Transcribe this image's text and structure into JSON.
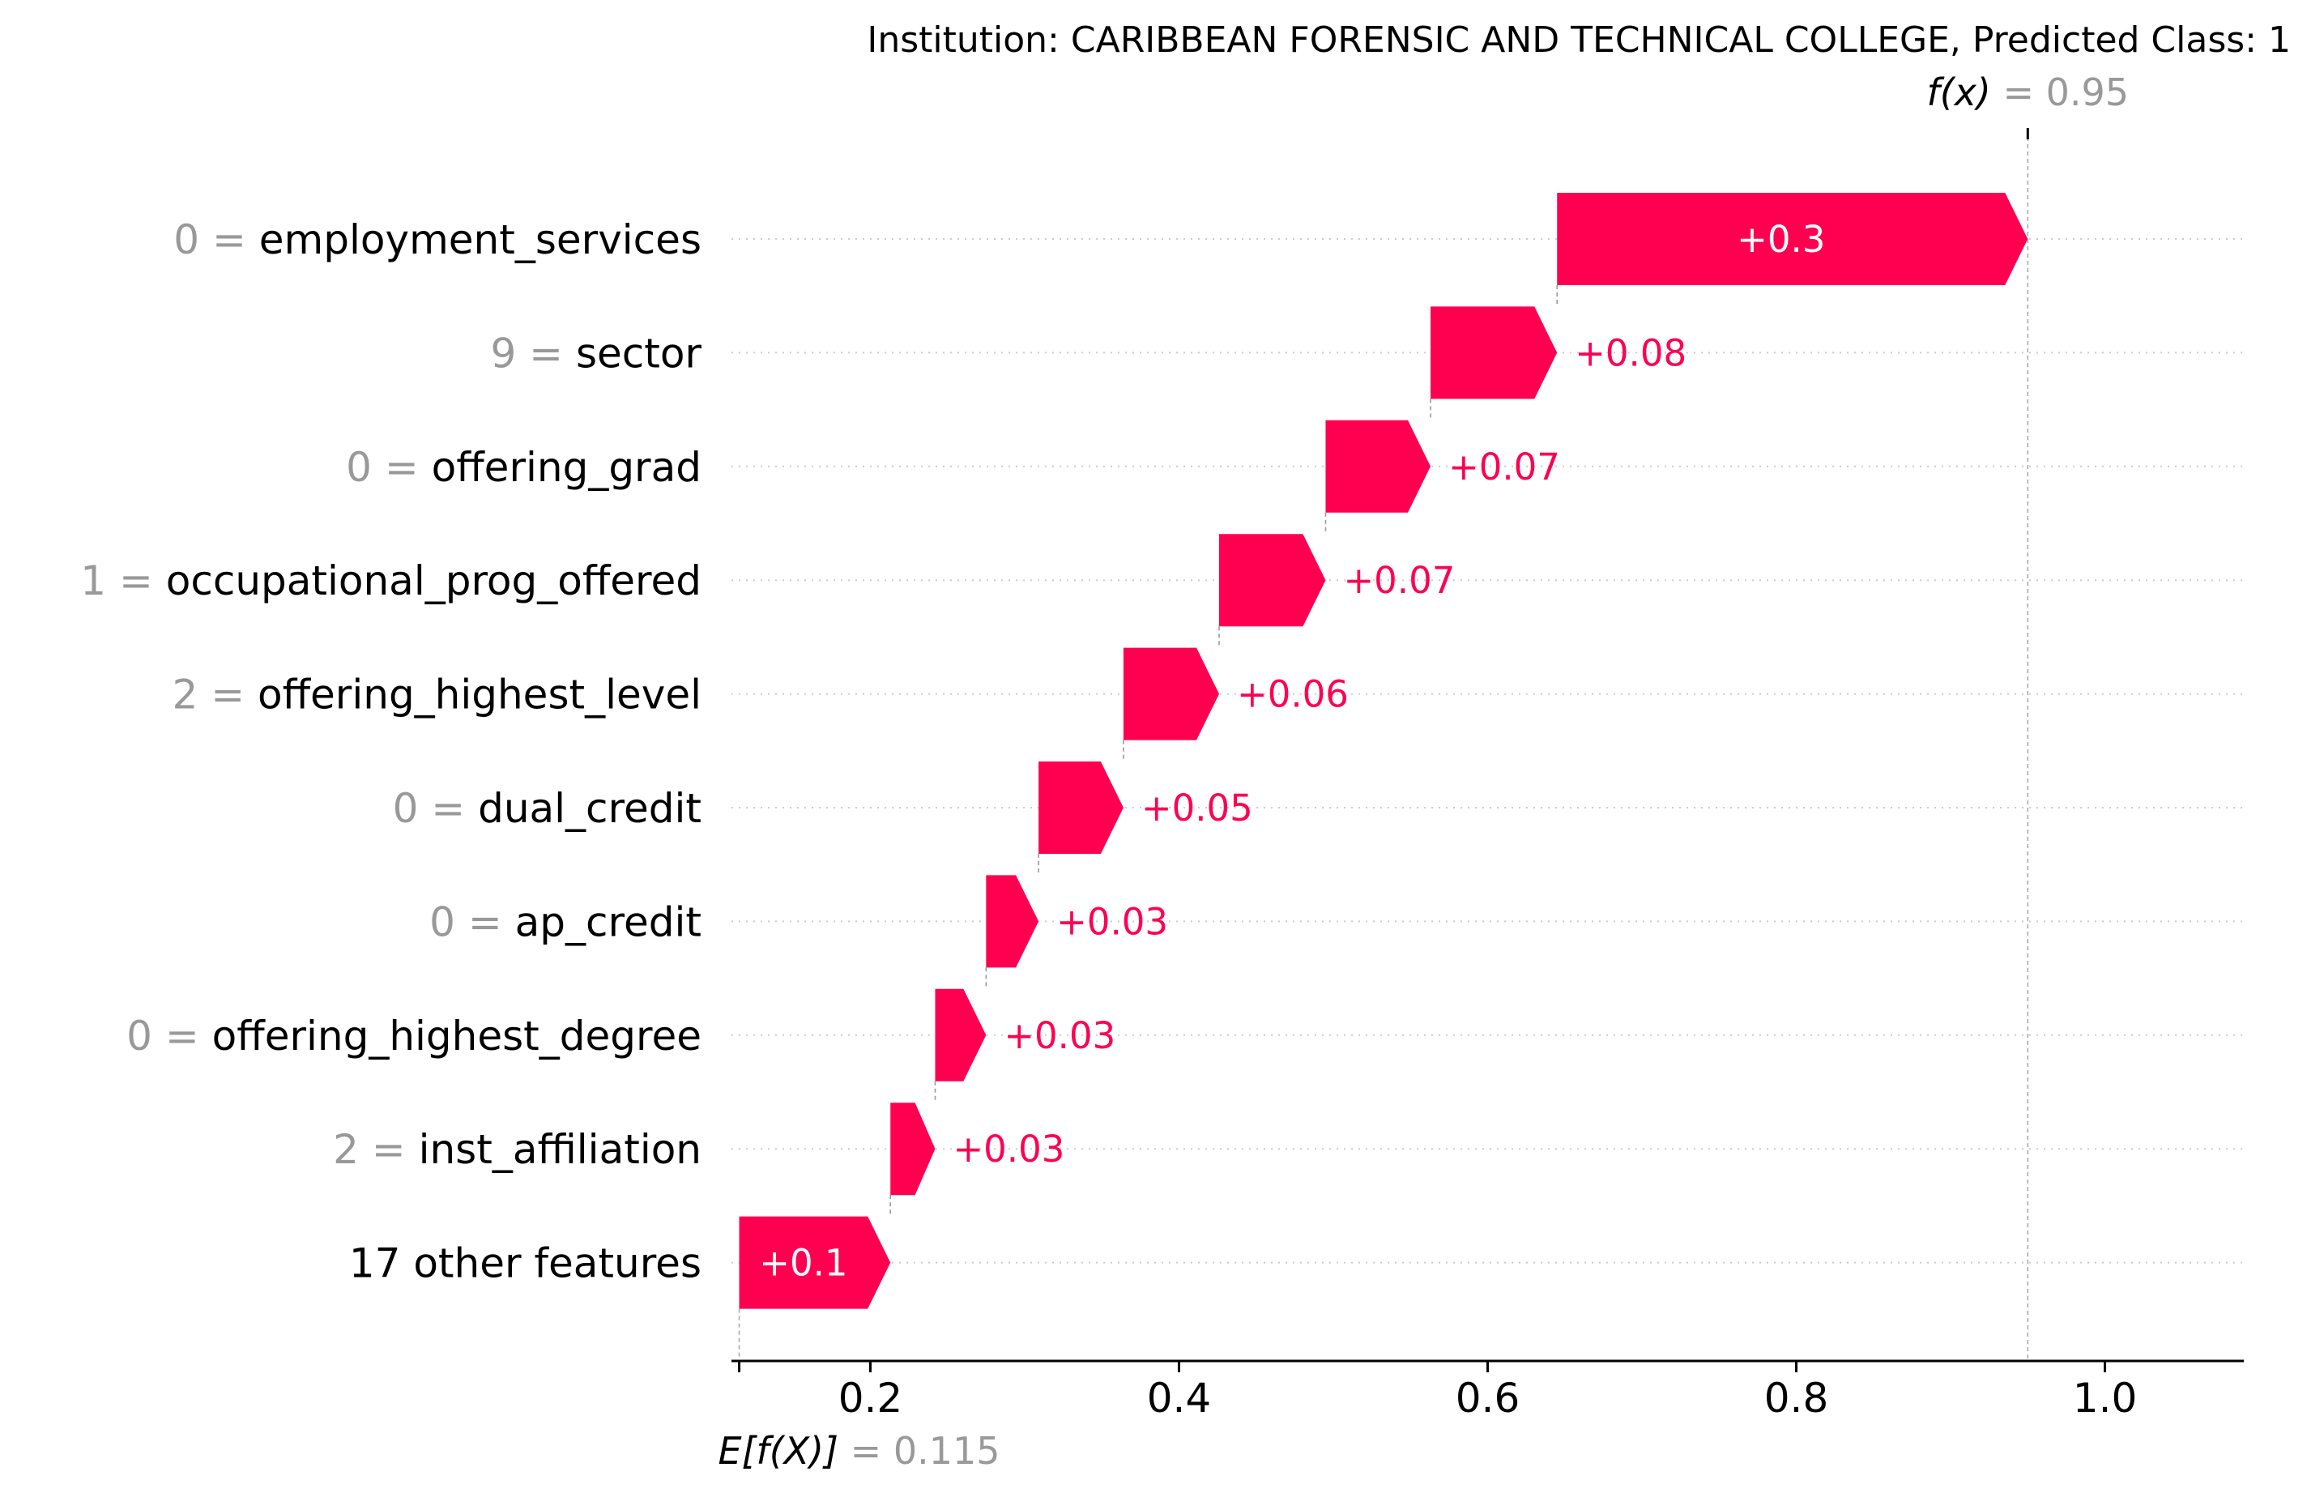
{
  "chart_data": {
    "type": "waterfall",
    "title": "Institution: CARIBBEAN FORENSIC AND TECHNICAL COLLEGE, Predicted Class: 1",
    "base_value": 0.115,
    "base_value_text": "0.115",
    "output_value": 0.95,
    "output_value_text": "0.95",
    "fx_label": "f(x)",
    "efx_label": "E[f(X)]",
    "xlim": [
      0.11,
      1.09
    ],
    "xticks": [
      0.2,
      0.4,
      0.6,
      0.8,
      1.0
    ],
    "xtick_labels": [
      "0.2",
      "0.4",
      "0.6",
      "0.8",
      "1.0"
    ],
    "grid": "horizontal dotted",
    "colors": {
      "positive": "#ff0051",
      "feature_value": "#999999",
      "text": "#000000",
      "inside_label": "#ffffff"
    },
    "features": [
      {
        "value": "0",
        "name": "employment_services",
        "contribution": 0.3,
        "label": "+0.3",
        "label_inside": true
      },
      {
        "value": "9",
        "name": "sector",
        "contribution": 0.08,
        "label": "+0.08",
        "label_inside": false
      },
      {
        "value": "0",
        "name": "offering_grad",
        "contribution": 0.07,
        "label": "+0.07",
        "label_inside": false
      },
      {
        "value": "1",
        "name": "occupational_prog_offered",
        "contribution": 0.07,
        "label": "+0.07",
        "label_inside": false
      },
      {
        "value": "2",
        "name": "offering_highest_level",
        "contribution": 0.06,
        "label": "+0.06",
        "label_inside": false
      },
      {
        "value": "0",
        "name": "dual_credit",
        "contribution": 0.05,
        "label": "+0.05",
        "label_inside": false
      },
      {
        "value": "0",
        "name": "ap_credit",
        "contribution": 0.03,
        "label": "+0.03",
        "label_inside": false
      },
      {
        "value": "0",
        "name": "offering_highest_degree",
        "contribution": 0.03,
        "label": "+0.03",
        "label_inside": false
      },
      {
        "value": "2",
        "name": "inst_affiliation",
        "contribution": 0.03,
        "label": "+0.03",
        "label_inside": false
      },
      {
        "value": "",
        "name": "17 other features",
        "contribution": 0.1,
        "label": "+0.1",
        "label_inside": true
      }
    ],
    "segments": [
      {
        "start": 0.645,
        "end": 0.95
      },
      {
        "start": 0.563,
        "end": 0.645
      },
      {
        "start": 0.495,
        "end": 0.563
      },
      {
        "start": 0.426,
        "end": 0.495
      },
      {
        "start": 0.364,
        "end": 0.426
      },
      {
        "start": 0.309,
        "end": 0.364
      },
      {
        "start": 0.275,
        "end": 0.309
      },
      {
        "start": 0.242,
        "end": 0.275
      },
      {
        "start": 0.213,
        "end": 0.242
      },
      {
        "start": 0.115,
        "end": 0.213
      }
    ]
  }
}
